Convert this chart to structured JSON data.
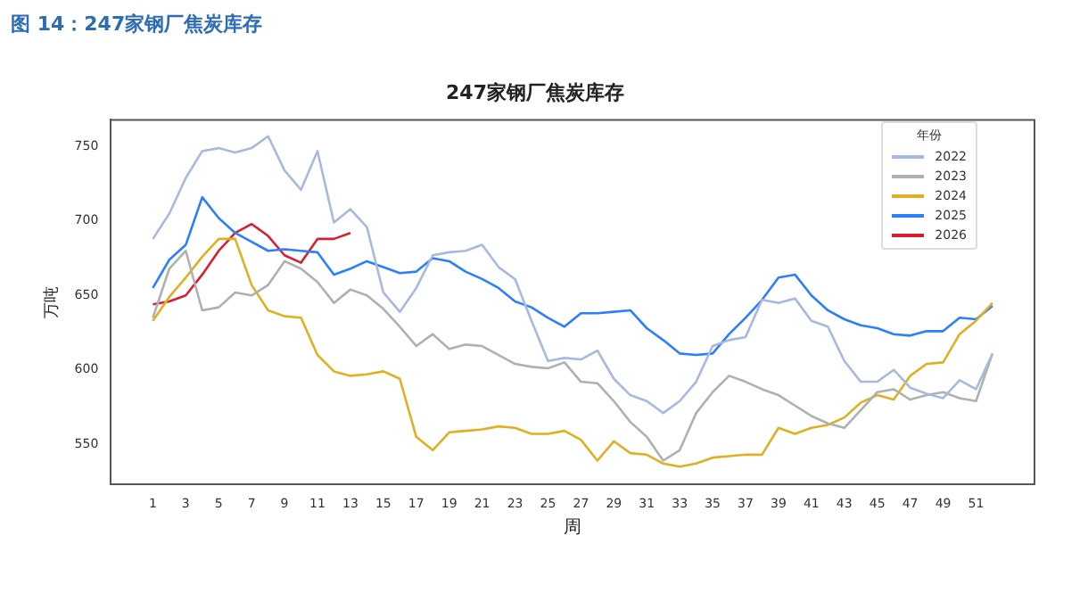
{
  "chart_data": {
    "type": "line",
    "title": "247家钢厂焦炭库存",
    "xlabel": "周",
    "ylabel": "万吨",
    "legend_title": "年份",
    "annotations": [
      "图 14：247家钢厂焦炭库存"
    ],
    "x": [
      1,
      2,
      3,
      4,
      5,
      6,
      7,
      8,
      9,
      10,
      11,
      12,
      13,
      14,
      15,
      16,
      17,
      18,
      19,
      20,
      21,
      22,
      23,
      24,
      25,
      26,
      27,
      28,
      29,
      30,
      31,
      32,
      33,
      34,
      35,
      36,
      37,
      38,
      39,
      40,
      41,
      42,
      43,
      44,
      45,
      46,
      47,
      48,
      49,
      50,
      51,
      52
    ],
    "series": [
      {
        "name": "2022",
        "color": "#a9b8e0",
        "values": [
          688,
          705,
          729,
          747,
          749,
          746,
          749,
          757,
          734,
          721,
          747,
          699,
          708,
          696,
          652,
          639,
          655,
          677,
          679,
          680,
          684,
          669,
          661,
          633,
          606,
          608,
          607,
          613,
          594,
          583,
          579,
          571,
          579,
          592,
          616,
          620,
          622,
          647,
          645,
          648,
          633,
          629,
          606,
          592,
          592,
          600,
          588,
          584,
          581,
          593,
          587,
          611
        ]
      },
      {
        "name": "2023",
        "color": "#b0b0b0",
        "values": [
          635,
          668,
          680,
          640,
          642,
          652,
          650,
          657,
          673,
          668,
          659,
          645,
          654,
          650,
          641,
          629,
          616,
          624,
          614,
          617,
          616,
          610,
          604,
          602,
          601,
          605,
          592,
          591,
          579,
          565,
          555,
          539,
          546,
          571,
          585,
          596,
          592,
          587,
          583,
          576,
          569,
          564,
          561,
          573,
          585,
          587,
          580,
          583,
          585,
          581,
          579,
          611
        ]
      },
      {
        "name": "2024",
        "color": "#e0b020",
        "values": [
          633,
          649,
          662,
          676,
          688,
          688,
          657,
          640,
          636,
          635,
          610,
          599,
          596,
          597,
          599,
          594,
          555,
          546,
          558,
          559,
          560,
          562,
          561,
          557,
          557,
          559,
          553,
          539,
          552,
          544,
          543,
          537,
          535,
          537,
          541,
          542,
          543,
          543,
          561,
          557,
          561,
          563,
          568,
          578,
          583,
          580,
          596,
          604,
          605,
          624,
          633,
          645
        ]
      },
      {
        "name": "2025",
        "color": "#2a7fff",
        "values": [
          655,
          674,
          684,
          716,
          702,
          692,
          686,
          680,
          681,
          680,
          679,
          664,
          668,
          673,
          669,
          665,
          666,
          675,
          673,
          666,
          661,
          655,
          646,
          642,
          635,
          629,
          638,
          638,
          639,
          640,
          628,
          620,
          611,
          610,
          611,
          624,
          635,
          647,
          662,
          664,
          650,
          640,
          634,
          630,
          628,
          624,
          623,
          626,
          626,
          635,
          634,
          643
        ]
      },
      {
        "name": "2026",
        "color": "#d62030",
        "x": [
          1,
          2,
          3,
          4,
          5,
          6,
          7,
          8,
          9,
          10,
          11,
          12,
          13
        ],
        "values": [
          644,
          646,
          650,
          664,
          680,
          692,
          698,
          690,
          677,
          672,
          688,
          688,
          692
        ]
      }
    ],
    "xlim": [
      -1.55,
      54.55
    ],
    "xticks": [
      1,
      3,
      5,
      7,
      9,
      11,
      13,
      15,
      17,
      19,
      21,
      23,
      25,
      27,
      29,
      31,
      33,
      35,
      37,
      39,
      41,
      43,
      45,
      47,
      49,
      51
    ],
    "ylim": [
      523,
      768
    ],
    "yticks": [
      550,
      600,
      650,
      700,
      750
    ],
    "grid": false,
    "legend": "top right",
    "marker": "none",
    "line_style": "solid"
  }
}
